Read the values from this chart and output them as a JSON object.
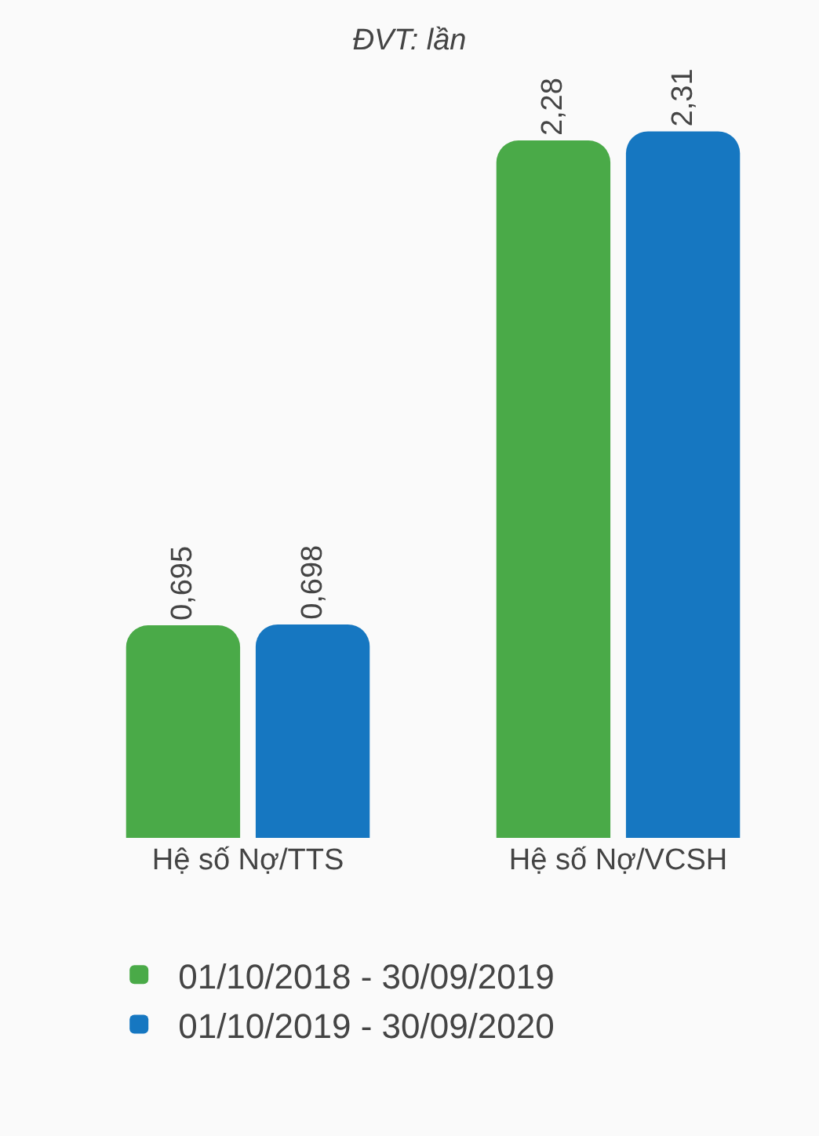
{
  "chart_data": {
    "type": "bar",
    "title": "ĐVT: lần",
    "categories": [
      "Hệ số Nợ/TTS",
      "Hệ số Nợ/VCSH"
    ],
    "series": [
      {
        "name": "01/10/2018 - 30/09/2019",
        "color": "#4aaa48",
        "values": [
          0.695,
          2.28
        ],
        "value_labels": [
          "0,695",
          "2,28"
        ]
      },
      {
        "name": "01/10/2019 - 30/09/2020",
        "color": "#1677c1",
        "values": [
          0.698,
          2.31
        ],
        "value_labels": [
          "0,698",
          "2,31"
        ]
      }
    ],
    "tick_labels": "x",
    "legend": "bottom"
  }
}
